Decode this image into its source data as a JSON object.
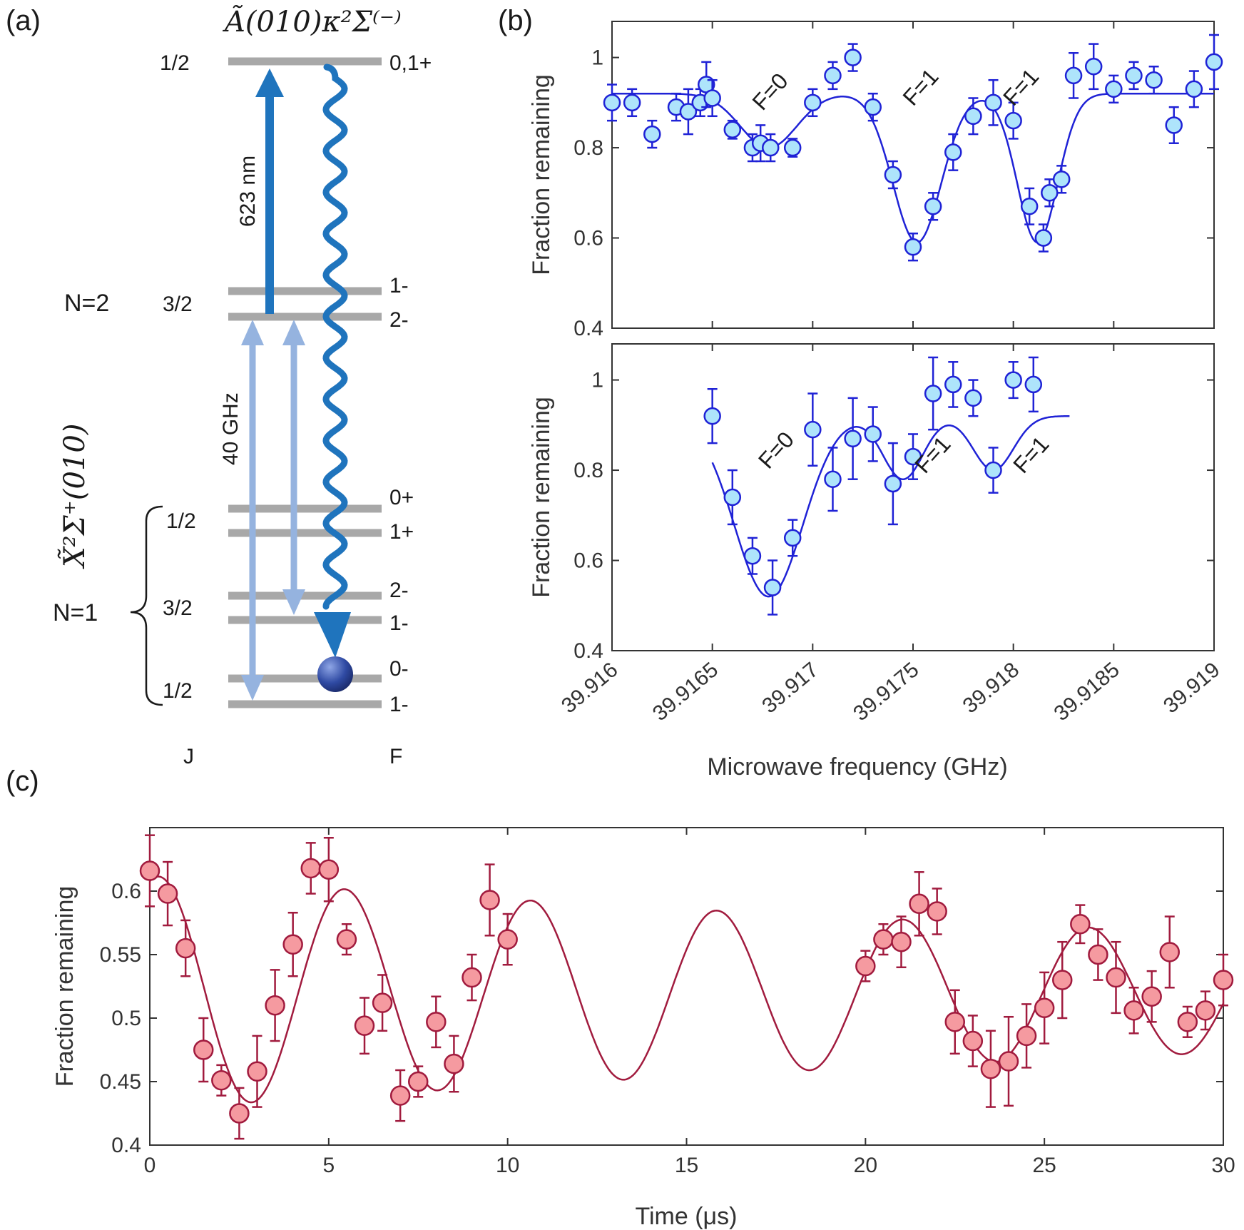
{
  "figure": {
    "panel_a_label": "(a)",
    "panel_b_label": "(b)",
    "panel_c_label": "(c)"
  },
  "panel_a": {
    "excited_state": "Ã(010)κ²Σ⁽⁻⁾",
    "ground_state": "X̃²Σ⁺(010)",
    "N2_label": "N=2",
    "N1_label": "N=1",
    "J_column": "J",
    "F_column": "F",
    "laser_label": "623 nm",
    "microwave_label": "40 GHz",
    "levels": [
      {
        "J": "1/2",
        "F": "0,1+"
      },
      {
        "J": "3/2",
        "F": "1-"
      },
      {
        "J": "",
        "F": "2-"
      },
      {
        "J": "1/2",
        "F": "0+"
      },
      {
        "J": "",
        "F": "1+"
      },
      {
        "J": "3/2",
        "F": "2-"
      },
      {
        "J": "",
        "F": "1-"
      },
      {
        "J": "1/2",
        "F": "0-"
      },
      {
        "J": "",
        "F": "1-"
      }
    ],
    "colors": {
      "level": "#a8a8a8",
      "laser": "#1f74bd",
      "microwave": "#95b3df",
      "decay": "#1f74bd",
      "molecule": "#2a3f8f"
    }
  },
  "chart_data": [
    {
      "type": "scatter",
      "panel": "b-top",
      "xlabel": "Microwave frequency (GHz)",
      "ylabel": "Fraction remaining",
      "xlim": [
        39.916,
        39.919
      ],
      "ylim": [
        0.4,
        1.08
      ],
      "xticks": [
        "39.916",
        "39.9165",
        "39.917",
        "39.9175",
        "39.918",
        "39.9185",
        "39.919"
      ],
      "yticks": [
        "0.4",
        "0.6",
        "0.8",
        "1"
      ],
      "color": "#1f22d6",
      "marker_fill": "#aee4fb",
      "annotations": [
        "F=0",
        "F=1",
        "F=1"
      ],
      "x": [
        39.916,
        39.9162,
        39.91632,
        39.91638,
        39.91644,
        39.91647,
        39.9165,
        39.9161,
        39.9166,
        39.9167,
        39.91674,
        39.91679,
        39.9169,
        39.917,
        39.9171,
        39.9172,
        39.9173,
        39.9174,
        39.9175,
        39.9176,
        39.9177,
        39.9178,
        39.9179,
        39.918,
        39.91808,
        39.91815,
        39.91818,
        39.91824,
        39.9183,
        39.9184,
        39.9185,
        39.9186,
        39.9187,
        39.9188,
        39.9189,
        39.919
      ],
      "y": [
        0.9,
        0.83,
        0.89,
        0.88,
        0.9,
        0.94,
        0.91,
        0.9,
        0.84,
        0.8,
        0.81,
        0.8,
        0.8,
        0.9,
        0.96,
        1.0,
        0.89,
        0.74,
        0.58,
        0.67,
        0.79,
        0.87,
        0.9,
        0.86,
        0.67,
        0.6,
        0.7,
        0.73,
        0.96,
        0.98,
        0.93,
        0.96,
        0.95,
        0.85,
        0.93,
        0.99
      ],
      "err": [
        0.04,
        0.03,
        0.03,
        0.05,
        0.03,
        0.05,
        0.04,
        0.03,
        0.02,
        0.03,
        0.04,
        0.03,
        0.02,
        0.03,
        0.03,
        0.03,
        0.03,
        0.03,
        0.03,
        0.03,
        0.04,
        0.04,
        0.05,
        0.04,
        0.04,
        0.03,
        0.03,
        0.03,
        0.05,
        0.05,
        0.03,
        0.03,
        0.03,
        0.04,
        0.04,
        0.06
      ]
    },
    {
      "type": "scatter",
      "panel": "b-bottom",
      "xlabel": "Microwave frequency (GHz)",
      "ylabel": "Fraction remaining",
      "xlim": [
        39.916,
        39.919
      ],
      "ylim": [
        0.4,
        1.08
      ],
      "xticks": [
        "39.916",
        "39.9165",
        "39.917",
        "39.9175",
        "39.918",
        "39.9185",
        "39.919"
      ],
      "yticks": [
        "0.4",
        "0.6",
        "0.8",
        "1"
      ],
      "color": "#1f22d6",
      "marker_fill": "#aee4fb",
      "annotations": [
        "F=0",
        "F=1",
        "F=1"
      ],
      "x": [
        39.9165,
        39.9166,
        39.9167,
        39.9168,
        39.9169,
        39.917,
        39.9171,
        39.9172,
        39.9173,
        39.9174,
        39.9175,
        39.9176,
        39.9177,
        39.9178,
        39.9179,
        39.918,
        39.9181
      ],
      "y": [
        0.92,
        0.74,
        0.61,
        0.54,
        0.65,
        0.89,
        0.78,
        0.87,
        0.88,
        0.77,
        0.83,
        0.97,
        0.99,
        0.96,
        0.8,
        1.0,
        0.99
      ],
      "err": [
        0.06,
        0.06,
        0.04,
        0.06,
        0.04,
        0.08,
        0.07,
        0.09,
        0.06,
        0.09,
        0.05,
        0.08,
        0.05,
        0.04,
        0.05,
        0.04,
        0.06
      ]
    },
    {
      "type": "scatter",
      "panel": "c",
      "xlabel": "Time (μs)",
      "ylabel": "Fraction remaining",
      "xlim": [
        0,
        30
      ],
      "ylim": [
        0.4,
        0.65
      ],
      "xticks": [
        "0",
        "5",
        "10",
        "15",
        "20",
        "25",
        "30"
      ],
      "yticks": [
        "0.4",
        "0.45",
        "0.5",
        "0.55",
        "0.6"
      ],
      "color": "#a11b3e",
      "marker_fill": "#f59aa0",
      "x": [
        0,
        0.5,
        1,
        1.5,
        2,
        2.5,
        3,
        3.5,
        4,
        4.5,
        5,
        5.5,
        6,
        6.5,
        7,
        7.5,
        8,
        8.5,
        9,
        9.5,
        10,
        20,
        20.5,
        21,
        21.5,
        22,
        22.5,
        23,
        23.5,
        24,
        24.5,
        25,
        25.5,
        26,
        26.5,
        27,
        27.5,
        28,
        28.5,
        29,
        29.5,
        30
      ],
      "y": [
        0.616,
        0.598,
        0.555,
        0.475,
        0.451,
        0.425,
        0.458,
        0.51,
        0.558,
        0.618,
        0.617,
        0.562,
        0.494,
        0.512,
        0.439,
        0.45,
        0.497,
        0.464,
        0.532,
        0.593,
        0.562,
        0.541,
        0.562,
        0.56,
        0.59,
        0.584,
        0.497,
        0.482,
        0.46,
        0.466,
        0.486,
        0.508,
        0.53,
        0.574,
        0.55,
        0.532,
        0.506,
        0.517,
        0.552,
        0.497,
        0.506,
        0.53
      ],
      "err": [
        0.028,
        0.025,
        0.022,
        0.025,
        0.012,
        0.02,
        0.028,
        0.028,
        0.025,
        0.02,
        0.025,
        0.012,
        0.022,
        0.022,
        0.02,
        0.012,
        0.02,
        0.022,
        0.018,
        0.028,
        0.02,
        0.012,
        0.012,
        0.02,
        0.025,
        0.018,
        0.025,
        0.02,
        0.03,
        0.035,
        0.025,
        0.028,
        0.03,
        0.015,
        0.02,
        0.028,
        0.018,
        0.02,
        0.028,
        0.012,
        0.015,
        0.02
      ]
    }
  ]
}
